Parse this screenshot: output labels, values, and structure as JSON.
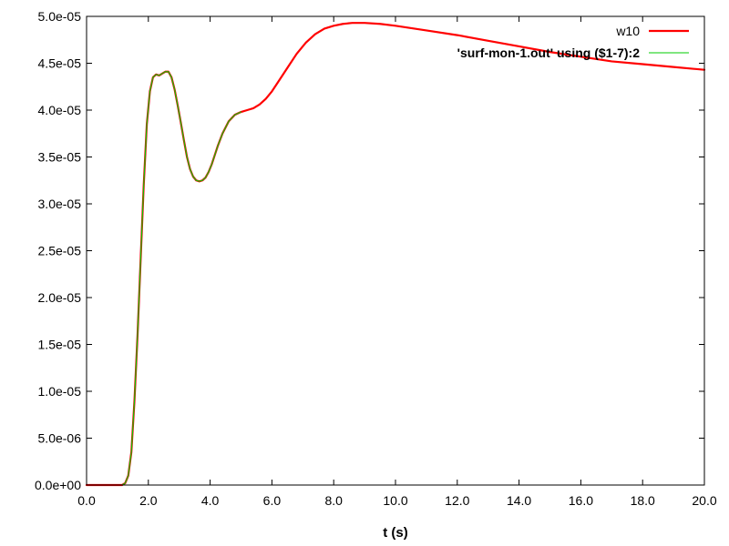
{
  "chart_data": {
    "type": "line",
    "title": "",
    "xlabel": "t (s)",
    "ylabel": "",
    "xlim": [
      0,
      20
    ],
    "ylim": [
      0,
      5e-05
    ],
    "x_ticks": [
      "0.0",
      "2.0",
      "4.0",
      "6.0",
      "8.0",
      "10.0",
      "12.0",
      "14.0",
      "16.0",
      "18.0",
      "20.0"
    ],
    "x_tick_values": [
      0,
      2,
      4,
      6,
      8,
      10,
      12,
      14,
      16,
      18,
      20
    ],
    "y_ticks": [
      "0.0e+00",
      "5.0e-06",
      "1.0e-05",
      "1.5e-05",
      "2.0e-05",
      "2.5e-05",
      "3.0e-05",
      "3.5e-05",
      "4.0e-05",
      "4.5e-05",
      "5.0e-05"
    ],
    "y_tick_values": [
      0,
      5e-06,
      1e-05,
      1.5e-05,
      2e-05,
      2.5e-05,
      3e-05,
      3.5e-05,
      4e-05,
      4.5e-05,
      5e-05
    ],
    "grid": false,
    "legend_position": "top-right",
    "series": [
      {
        "name": "w10",
        "color": "#ff0000",
        "x": [
          0,
          0.5,
          1.0,
          1.15,
          1.25,
          1.35,
          1.45,
          1.55,
          1.65,
          1.75,
          1.85,
          1.95,
          2.05,
          2.15,
          2.25,
          2.35,
          2.45,
          2.55,
          2.65,
          2.75,
          2.85,
          2.95,
          3.05,
          3.15,
          3.25,
          3.35,
          3.45,
          3.55,
          3.65,
          3.75,
          3.85,
          3.95,
          4.05,
          4.15,
          4.25,
          4.4,
          4.6,
          4.8,
          5.0,
          5.2,
          5.4,
          5.6,
          5.8,
          6.0,
          6.2,
          6.5,
          6.8,
          7.1,
          7.4,
          7.7,
          8.0,
          8.3,
          8.6,
          9.0,
          9.5,
          10.0,
          11.0,
          12.0,
          13.0,
          14.0,
          15.0,
          16.0,
          17.0,
          18.0,
          19.0,
          20.0
        ],
        "y": [
          0,
          0,
          0,
          0.0,
          2e-07,
          1e-06,
          3.5e-06,
          9e-06,
          1.6e-05,
          2.4e-05,
          3.2e-05,
          3.85e-05,
          4.2e-05,
          4.35e-05,
          4.38e-05,
          4.37e-05,
          4.39e-05,
          4.41e-05,
          4.41e-05,
          4.35e-05,
          4.22e-05,
          4.05e-05,
          3.87e-05,
          3.68e-05,
          3.5e-05,
          3.37e-05,
          3.29e-05,
          3.25e-05,
          3.24e-05,
          3.25e-05,
          3.28e-05,
          3.34e-05,
          3.42e-05,
          3.52e-05,
          3.62e-05,
          3.75e-05,
          3.88e-05,
          3.95e-05,
          3.98e-05,
          4e-05,
          4.02e-05,
          4.06e-05,
          4.12e-05,
          4.2e-05,
          4.3e-05,
          4.45e-05,
          4.6e-05,
          4.72e-05,
          4.81e-05,
          4.87e-05,
          4.9e-05,
          4.92e-05,
          4.93e-05,
          4.93e-05,
          4.92e-05,
          4.9e-05,
          4.85e-05,
          4.8e-05,
          4.74e-05,
          4.68e-05,
          4.62e-05,
          4.57e-05,
          4.52e-05,
          4.49e-05,
          4.46e-05,
          4.43e-05
        ]
      },
      {
        "name": "'surf-mon-1.out' using ($1-7):2",
        "color": "#00cc00",
        "x": [
          0,
          0.5,
          1.0,
          1.15,
          1.25,
          1.35,
          1.45,
          1.55,
          1.65,
          1.75,
          1.85,
          1.95,
          2.05,
          2.15,
          2.25,
          2.35,
          2.45,
          2.55,
          2.65,
          2.75,
          2.85,
          2.95,
          3.05,
          3.15,
          3.25,
          3.35,
          3.45,
          3.55,
          3.65,
          3.75,
          3.85,
          3.95,
          4.05,
          4.15,
          4.25,
          4.4,
          4.6,
          4.8,
          5.0
        ],
        "y": [
          0,
          0,
          0,
          0.0,
          2e-07,
          1e-06,
          3.5e-06,
          9e-06,
          1.6e-05,
          2.4e-05,
          3.2e-05,
          3.85e-05,
          4.2e-05,
          4.35e-05,
          4.38e-05,
          4.37e-05,
          4.39e-05,
          4.41e-05,
          4.41e-05,
          4.35e-05,
          4.22e-05,
          4.05e-05,
          3.87e-05,
          3.68e-05,
          3.5e-05,
          3.37e-05,
          3.29e-05,
          3.25e-05,
          3.24e-05,
          3.25e-05,
          3.28e-05,
          3.34e-05,
          3.42e-05,
          3.52e-05,
          3.62e-05,
          3.75e-05,
          3.88e-05,
          3.95e-05,
          3.98e-05
        ]
      }
    ]
  }
}
